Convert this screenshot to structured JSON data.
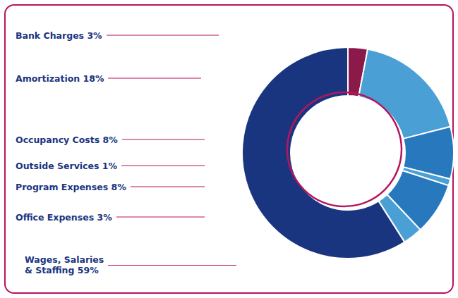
{
  "chart_data": {
    "type": "pie",
    "categories": [
      "Bank Charges 3%",
      "Amortization 18%",
      "Occupancy Costs 8%",
      "Outside Services 1%",
      "Program Expenses 8%",
      "Office Expenses 3%",
      "Wages, Salaries\n& Staffing 59%"
    ],
    "values": [
      3,
      18,
      8,
      1,
      8,
      3,
      59
    ],
    "colors": [
      "#8b1a4a",
      "#4a9fd4",
      "#2878be",
      "#4a9fd4",
      "#2878be",
      "#4a9fd4",
      "#1a3580"
    ]
  }
}
